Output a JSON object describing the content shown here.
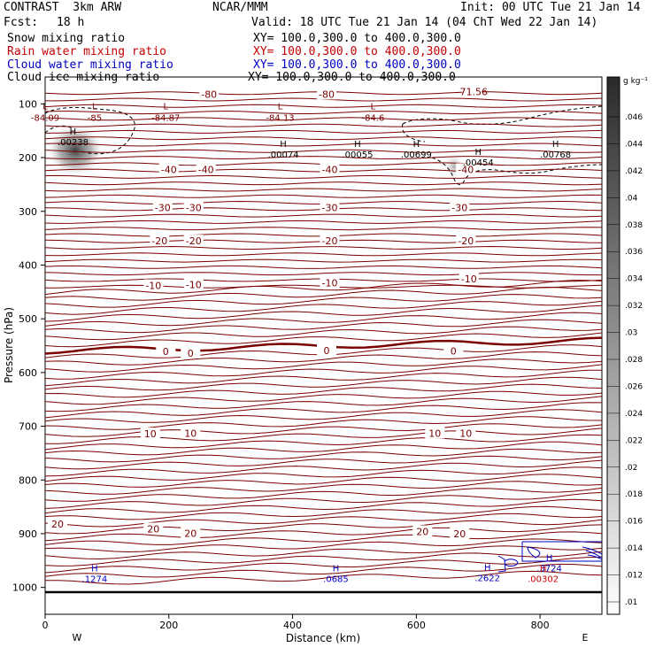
{
  "header": {
    "model": "CONTRAST  3km ARW",
    "org": "NCAR/MMM",
    "init": "Init: 00 UTC Tue 21 Jan 14",
    "fcst_label": "Fcst:",
    "fcst_value": "18 h",
    "valid": "Valid: 18 UTC Tue 21 Jan 14 (04 ChT Wed 22 Jan 14)"
  },
  "fields": [
    {
      "name": "Snow mixing ratio",
      "xy": "XY= 100.0,300.0 to 400.0,300.0",
      "color": "#000000"
    },
    {
      "name": "Rain water mixing ratio",
      "xy": "XY= 100.0,300.0 to 400.0,300.0",
      "color": "#c00000"
    },
    {
      "name": "Cloud water mixing ratio",
      "xy": "XY= 100.0,300.0 to 400.0,300.0",
      "color": "#0000c0"
    },
    {
      "name": "Cloud ice mixing ratio",
      "xy": "XY= 100.0,300.0 to 400.0,300.0",
      "color": "#000000"
    }
  ],
  "chart_data": {
    "type": "contour",
    "xlabel": "Distance (km)",
    "ylabel": "Pressure (hPa)",
    "xlim": [
      0,
      900
    ],
    "ylim": [
      1050,
      50
    ],
    "x_ticks": [
      0,
      200,
      400,
      600,
      800
    ],
    "y_ticks": [
      100,
      200,
      300,
      400,
      500,
      600,
      700,
      800,
      900,
      1000
    ],
    "left_end": "W",
    "right_end": "E",
    "colorbar": {
      "unit": "g kg⁻¹",
      "levels": [
        ".01",
        ".012",
        ".014",
        ".016",
        ".018",
        ".02",
        ".022",
        ".024",
        ".026",
        ".028",
        ".03",
        ".032",
        ".034",
        ".036",
        ".038",
        ".04",
        ".042",
        ".044",
        ".046"
      ]
    },
    "temperature_labels": [
      {
        "text": "-80",
        "x": 265,
        "p": 82
      },
      {
        "text": "-80",
        "x": 455,
        "p": 82
      },
      {
        "text": "-71.56",
        "x": 690,
        "p": 77
      },
      {
        "text": "-40",
        "x": 200,
        "p": 222
      },
      {
        "text": "-40",
        "x": 260,
        "p": 222
      },
      {
        "text": "-40",
        "x": 460,
        "p": 222
      },
      {
        "text": "-40",
        "x": 680,
        "p": 222
      },
      {
        "text": "-30",
        "x": 190,
        "p": 293
      },
      {
        "text": "-30",
        "x": 240,
        "p": 293
      },
      {
        "text": "-30",
        "x": 460,
        "p": 293
      },
      {
        "text": "-30",
        "x": 670,
        "p": 293
      },
      {
        "text": "-20",
        "x": 185,
        "p": 355
      },
      {
        "text": "-20",
        "x": 240,
        "p": 355
      },
      {
        "text": "-20",
        "x": 460,
        "p": 355
      },
      {
        "text": "-20",
        "x": 680,
        "p": 355
      },
      {
        "text": "-10",
        "x": 175,
        "p": 438
      },
      {
        "text": "-10",
        "x": 240,
        "p": 436
      },
      {
        "text": "-10",
        "x": 460,
        "p": 433
      },
      {
        "text": "-10",
        "x": 685,
        "p": 426
      },
      {
        "text": "0",
        "x": 195,
        "p": 561
      },
      {
        "text": "0",
        "x": 235,
        "p": 564
      },
      {
        "text": "0",
        "x": 455,
        "p": 559
      },
      {
        "text": "0",
        "x": 660,
        "p": 560
      },
      {
        "text": "10",
        "x": 170,
        "p": 714
      },
      {
        "text": "10",
        "x": 235,
        "p": 713
      },
      {
        "text": "10",
        "x": 630,
        "p": 713
      },
      {
        "text": "10",
        "x": 680,
        "p": 713
      },
      {
        "text": "20",
        "x": 20,
        "p": 882
      },
      {
        "text": "20",
        "x": 175,
        "p": 891
      },
      {
        "text": "20",
        "x": 235,
        "p": 899
      },
      {
        "text": "20",
        "x": 610,
        "p": 896
      },
      {
        "text": "20",
        "x": 670,
        "p": 900
      }
    ],
    "low_labels": [
      {
        "text": "L",
        "value": "-84.09",
        "x": 0,
        "p": 115
      },
      {
        "text": "L",
        "value": "-85",
        "x": 80,
        "p": 115
      },
      {
        "text": "L",
        "value": "-84.87",
        "x": 195,
        "p": 115
      },
      {
        "text": "L",
        "value": "-84.13",
        "x": 380,
        "p": 115
      },
      {
        "text": "L",
        "value": "-84.6",
        "x": 530,
        "p": 115
      }
    ],
    "high_labels": [
      {
        "text": "H",
        "value": ".00238",
        "x": 45,
        "p": 167,
        "color": "#000000"
      },
      {
        "text": "H",
        "value": ".00074",
        "x": 385,
        "p": 190,
        "color": "#000000"
      },
      {
        "text": "H",
        "value": ".00055",
        "x": 505,
        "p": 190,
        "color": "#000000"
      },
      {
        "text": "H",
        "value": ".00699",
        "x": 600,
        "p": 190,
        "color": "#000000"
      },
      {
        "text": "H",
        "value": ".00454",
        "x": 700,
        "p": 205,
        "color": "#000000"
      },
      {
        "text": "H",
        "value": ".00768",
        "x": 825,
        "p": 190,
        "color": "#000000"
      },
      {
        "text": "H",
        "value": ".1274",
        "x": 80,
        "p": 980,
        "color": "#0000c0"
      },
      {
        "text": "H",
        "value": ".0685",
        "x": 470,
        "p": 980,
        "color": "#0000c0"
      },
      {
        "text": "H",
        "value": ".2622",
        "x": 715,
        "p": 978,
        "color": "#0000c0"
      },
      {
        "text": "H",
        "value": ".3724",
        "x": 815,
        "p": 960,
        "color": "#0000c0"
      },
      {
        "text": "H",
        "value": ".00302",
        "x": 805,
        "p": 980,
        "color": "#c00000"
      }
    ]
  }
}
